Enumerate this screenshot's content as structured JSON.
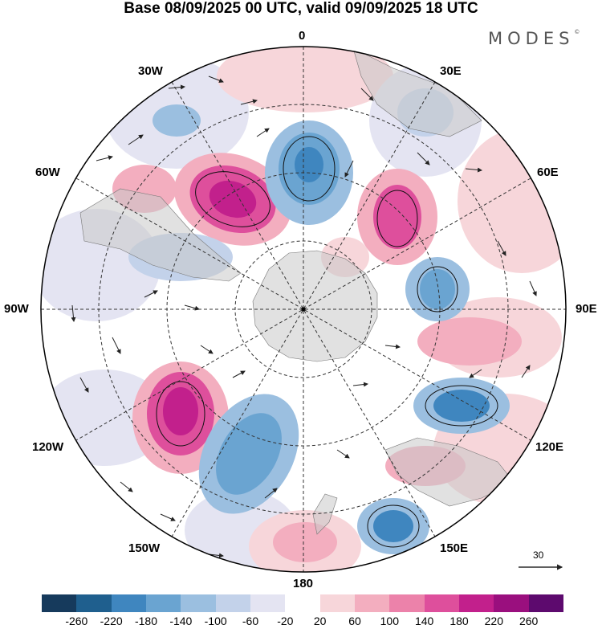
{
  "title": "Base 08/09/2025 00 UTC, valid 09/09/2025 18 UTC",
  "brand": "MODES",
  "brand_mark": "©",
  "longitude_labels": {
    "lon_0": "0",
    "lon_30e": "30E",
    "lon_60e": "60E",
    "lon_90e": "90E",
    "lon_120e": "120E",
    "lon_150e": "150E",
    "lon_180": "180",
    "lon_150w": "150W",
    "lon_120w": "120W",
    "lon_90w": "90W",
    "lon_60w": "60W",
    "lon_30w": "30W"
  },
  "reference_vector": {
    "value": "30"
  },
  "colorbar": {
    "colors": [
      "#163a5c",
      "#1f5f8e",
      "#3f86bf",
      "#6aa4d1",
      "#9bbfe0",
      "#c3d2ea",
      "#e4e4f2",
      "#ffffff",
      "#f7d6da",
      "#f3aebf",
      "#ec82aa",
      "#de4f9c",
      "#c2208c",
      "#9a0f7e",
      "#5d0a6e"
    ],
    "ticks": [
      "-260",
      "-220",
      "-180",
      "-140",
      "-100",
      "-60",
      "-20",
      "20",
      "60",
      "100",
      "140",
      "180",
      "220",
      "260"
    ]
  }
}
